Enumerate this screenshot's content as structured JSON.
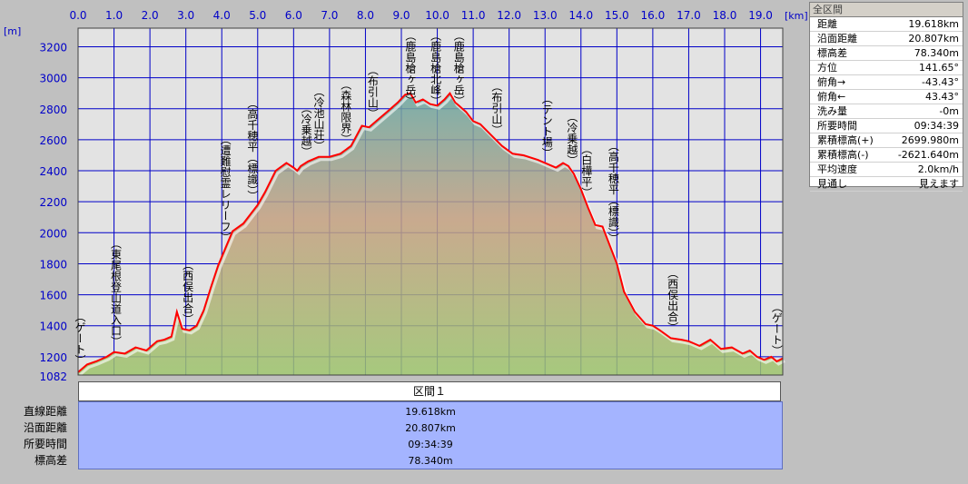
{
  "chart_data": {
    "type": "area",
    "x_unit": "[km]",
    "y_unit": "[m]",
    "xlim": [
      0,
      19.618
    ],
    "ylim": [
      1082,
      3320
    ],
    "x_ticks": [
      0.0,
      1.0,
      2.0,
      3.0,
      4.0,
      5.0,
      6.0,
      7.0,
      8.0,
      9.0,
      10.0,
      11.0,
      12.0,
      13.0,
      14.0,
      15.0,
      16.0,
      17.0,
      18.0,
      19.0
    ],
    "x_tick_labels": [
      "0.0",
      "1.0",
      "2.0",
      "3.0",
      "4.0",
      "5.0",
      "6.0",
      "7.0",
      "8.0",
      "9.0",
      "10.0",
      "11.0",
      "12.0",
      "13.0",
      "14.0",
      "15.0",
      "16.0",
      "17.0",
      "18.0",
      "19.0"
    ],
    "y_ticks": [
      1200,
      1400,
      1600,
      1800,
      2000,
      2200,
      2400,
      2600,
      2800,
      3000,
      3200
    ],
    "y_tick_labels": [
      "1200",
      "1400",
      "1600",
      "1800",
      "2000",
      "2200",
      "2400",
      "2600",
      "2800",
      "3000",
      "3200"
    ],
    "y_min_label": "1082",
    "grid": true,
    "series": [
      {
        "x": [
          0,
          0.25,
          0.5,
          0.8,
          1.0,
          1.3,
          1.6,
          1.9,
          2.2,
          2.4,
          2.6,
          2.75,
          2.9,
          3.1,
          3.3,
          3.5,
          3.7,
          3.9,
          4.1,
          4.3,
          4.6,
          4.8,
          5.0,
          5.2,
          5.5,
          5.8,
          6.0,
          6.1,
          6.2,
          6.4,
          6.7,
          7.0,
          7.3,
          7.6,
          7.9,
          8.1,
          8.3,
          8.6,
          8.9,
          9.1,
          9.25,
          9.4,
          9.6,
          9.8,
          10.0,
          10.2,
          10.35,
          10.5,
          10.6,
          10.8,
          11.0,
          11.2,
          11.5,
          11.8,
          12.1,
          12.4,
          12.8,
          13.1,
          13.3,
          13.5,
          13.65,
          13.8,
          14.0,
          14.2,
          14.4,
          14.6,
          14.8,
          15.0,
          15.2,
          15.5,
          15.8,
          16.0,
          16.2,
          16.5,
          16.8,
          17.0,
          17.3,
          17.6,
          17.9,
          18.2,
          18.5,
          18.7,
          18.9,
          19.1,
          19.3,
          19.45,
          19.618
        ],
        "y": [
          1100,
          1150,
          1170,
          1200,
          1230,
          1220,
          1260,
          1240,
          1300,
          1310,
          1330,
          1490,
          1380,
          1370,
          1400,
          1500,
          1650,
          1790,
          1900,
          2010,
          2060,
          2120,
          2180,
          2260,
          2400,
          2450,
          2420,
          2400,
          2430,
          2460,
          2490,
          2490,
          2510,
          2560,
          2690,
          2680,
          2720,
          2780,
          2840,
          2890,
          2900,
          2840,
          2860,
          2830,
          2820,
          2860,
          2900,
          2840,
          2820,
          2780,
          2720,
          2700,
          2630,
          2560,
          2510,
          2500,
          2470,
          2440,
          2420,
          2450,
          2430,
          2380,
          2280,
          2160,
          2050,
          2040,
          1920,
          1800,
          1620,
          1490,
          1410,
          1400,
          1370,
          1320,
          1310,
          1300,
          1270,
          1310,
          1250,
          1260,
          1220,
          1240,
          1200,
          1180,
          1200,
          1170,
          1190
        ]
      }
    ],
    "annotations": [
      {
        "x": 0.05,
        "label": "（ゲート）"
      },
      {
        "x": 1.05,
        "label": "（東尾根登山道入口）"
      },
      {
        "x": 3.05,
        "label": "（西俣出合）"
      },
      {
        "x": 4.1,
        "label": "（遭難慰霊レリーフ）"
      },
      {
        "x": 4.85,
        "label": "（高千穂平（標識））"
      },
      {
        "x": 6.35,
        "label": "（冷乗越）"
      },
      {
        "x": 6.7,
        "label": "（冷池山荘）"
      },
      {
        "x": 7.45,
        "label": "（森林限界）"
      },
      {
        "x": 8.2,
        "label": "（布引山）"
      },
      {
        "x": 9.25,
        "label": "（鹿島槍ヶ岳）"
      },
      {
        "x": 9.95,
        "label": "（鹿島槍北峰）"
      },
      {
        "x": 10.6,
        "label": "（鹿島槍ヶ岳）"
      },
      {
        "x": 11.65,
        "label": "（布引山）"
      },
      {
        "x": 13.05,
        "label": "（テント場）"
      },
      {
        "x": 13.75,
        "label": "（冷乗越）"
      },
      {
        "x": 14.15,
        "label": "（白樺平）"
      },
      {
        "x": 14.9,
        "label": "（高千穂平（標識））"
      },
      {
        "x": 16.55,
        "label": "（西俣出合）"
      },
      {
        "x": 19.45,
        "label": "（ゲート）"
      }
    ],
    "colors": {
      "plot_bg": "#e3e3e3",
      "grid": "#0000c8",
      "line": "#ff0000",
      "area_top": "#6aa6a0",
      "area_mid": "#c4a080",
      "area_bottom": "#9cc46c",
      "label": "#0000c8"
    }
  },
  "info_panel": {
    "title": "全区間",
    "rows": [
      {
        "label": "距離",
        "value": "19.618km"
      },
      {
        "label": "沿面距離",
        "value": "20.807km"
      },
      {
        "label": "標高差",
        "value": "78.340m"
      },
      {
        "label": "方位",
        "value": "141.65°"
      },
      {
        "label": "俯角→",
        "value": "-43.43°"
      },
      {
        "label": "俯角←",
        "value": "43.43°"
      },
      {
        "label": "洗み量",
        "value": "-0m"
      },
      {
        "label": "所要時間",
        "value": "09:34:39"
      },
      {
        "label": "累積標高(+)",
        "value": "2699.980m"
      },
      {
        "label": "累積標高(-)",
        "value": "-2621.640m"
      },
      {
        "label": "平均速度",
        "value": "2.0km/h"
      },
      {
        "label": "見通し",
        "value": "見えます"
      }
    ]
  },
  "section": {
    "header": "区間１",
    "rows": [
      {
        "label": "直線距離",
        "value": "19.618km"
      },
      {
        "label": "沿面距離",
        "value": "20.807km"
      },
      {
        "label": "所要時間",
        "value": "09:34:39"
      },
      {
        "label": "標高差",
        "value": "78.340m"
      }
    ]
  }
}
